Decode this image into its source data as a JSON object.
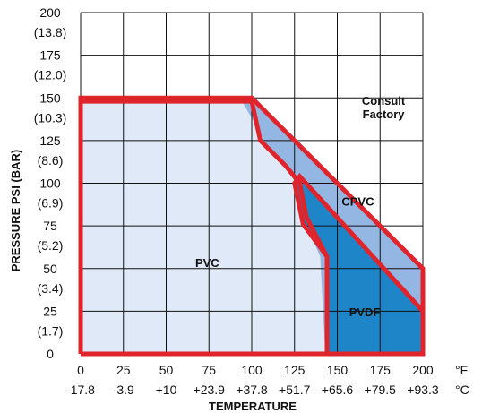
{
  "chart_data": {
    "type": "area",
    "title": "",
    "xlabel": "TEMPERATURE",
    "ylabel": "PRESSURE PSI (BAR)",
    "x_unit_primary": "°F",
    "x_unit_secondary": "°C",
    "xlim": [
      0,
      200
    ],
    "ylim": [
      0,
      200
    ],
    "grid": true,
    "x_ticks": [
      {
        "value": 0,
        "f": "0",
        "c": "-17.8"
      },
      {
        "value": 25,
        "f": "25",
        "c": "-3.9"
      },
      {
        "value": 50,
        "f": "50",
        "c": "+10"
      },
      {
        "value": 75,
        "f": "75",
        "c": "+23.9"
      },
      {
        "value": 100,
        "f": "100",
        "c": "+37.8"
      },
      {
        "value": 125,
        "f": "125",
        "c": "+51.7"
      },
      {
        "value": 150,
        "f": "150",
        "c": "+65.6"
      },
      {
        "value": 175,
        "f": "175",
        "c": "+79.5"
      },
      {
        "value": 200,
        "f": "200",
        "c": "+93.3"
      }
    ],
    "y_ticks": [
      {
        "value": 0,
        "psi": "0",
        "bar": ""
      },
      {
        "value": 25,
        "psi": "25",
        "bar": "(1.7)"
      },
      {
        "value": 50,
        "psi": "50",
        "bar": "(3.4)"
      },
      {
        "value": 75,
        "psi": "75",
        "bar": "(5.2)"
      },
      {
        "value": 100,
        "psi": "100",
        "bar": "(6.9)"
      },
      {
        "value": 125,
        "psi": "125",
        "bar": "(8.6)"
      },
      {
        "value": 150,
        "psi": "150",
        "bar": "(10.3)"
      },
      {
        "value": 175,
        "psi": "175",
        "bar": "(12.0)"
      },
      {
        "value": 200,
        "psi": "200",
        "bar": "(13.8)"
      }
    ],
    "series": [
      {
        "name": "PVC",
        "color": "#dfe9f8",
        "outline": false,
        "points": [
          [
            0,
            0
          ],
          [
            0,
            147
          ],
          [
            95,
            147
          ],
          [
            109,
            122
          ],
          [
            128,
            100
          ],
          [
            130,
            80
          ],
          [
            140,
            57
          ],
          [
            143,
            0
          ]
        ]
      },
      {
        "name": "CPVC",
        "color": "#93b6e2",
        "outline": true,
        "points": [
          [
            0,
            0
          ],
          [
            0,
            150
          ],
          [
            100,
            150
          ],
          [
            200,
            50
          ],
          [
            200,
            0
          ],
          [
            0,
            0
          ]
        ]
      },
      {
        "name": "PVDF",
        "color": "#1e86c8",
        "outline": true,
        "points": [
          [
            144,
            0
          ],
          [
            144,
            57
          ],
          [
            130,
            76
          ],
          [
            125,
            100
          ],
          [
            128,
            104
          ],
          [
            200,
            25
          ],
          [
            200,
            0
          ]
        ]
      }
    ],
    "pvc_boundary_points": [
      [
        0,
        148
      ],
      [
        100,
        148
      ],
      [
        105,
        125
      ],
      [
        120,
        110
      ],
      [
        128,
        100
      ],
      [
        132,
        80
      ],
      [
        144,
        57
      ],
      [
        144,
        0
      ]
    ],
    "annotations": [
      {
        "lines": [
          "Consult",
          "Factory"
        ],
        "x": 177,
        "y": 146
      },
      {
        "lines": [
          "CPVC"
        ],
        "x": 162,
        "y": 87
      },
      {
        "lines": [
          "PVC"
        ],
        "x": 74,
        "y": 51
      },
      {
        "lines": [
          "PVDF"
        ],
        "x": 166,
        "y": 22
      }
    ],
    "outline_color": "#e0242b",
    "grid_color": "#111111"
  }
}
